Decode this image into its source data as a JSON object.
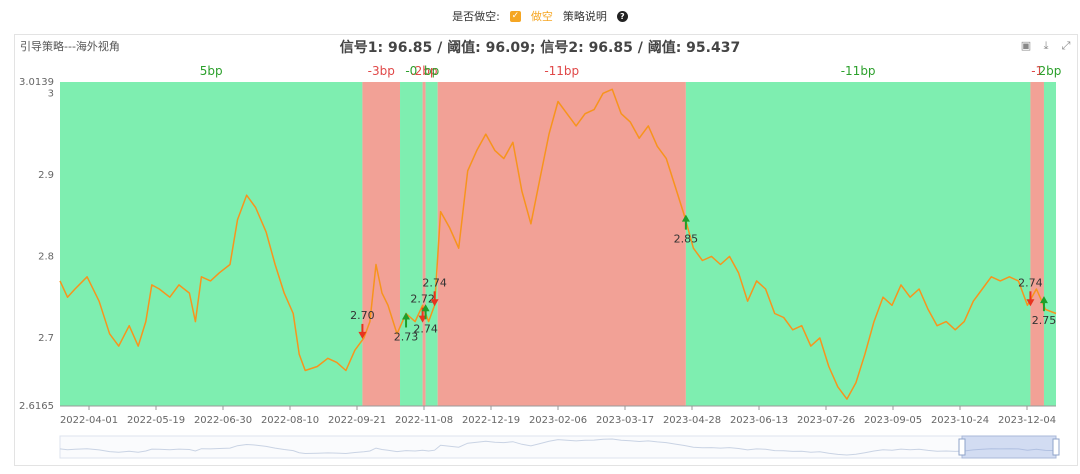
{
  "controls": {
    "short_question": "是否做空:",
    "short_checkbox_mark": "✓",
    "short_option": "做空",
    "strategy_help": "策略说明",
    "help_mark": "?"
  },
  "panel": {
    "strategy_name": "引导策略---海外视角",
    "signal_summary": "信号1: 96.85 / 阈值: 96.09; 信号2: 96.85 / 阈值: 95.437",
    "toolbox": [
      {
        "icon": "image-icon",
        "glyph": "▣"
      },
      {
        "icon": "download-icon",
        "glyph": "⤓"
      },
      {
        "icon": "fullscreen-icon",
        "glyph": "⤢"
      }
    ]
  },
  "colors": {
    "line": "#f7941d",
    "long_band": "#7eeeb0",
    "short_band": "#f2a196",
    "up_arrow": "#1e9e2a",
    "down_arrow": "#e8331e",
    "band_label_green": "#2ca02c",
    "band_label_red": "#e04848"
  },
  "chart_data": {
    "type": "line",
    "title": "",
    "xlabel": "",
    "ylabel": "",
    "ylim": [
      2.6165,
      3.0139
    ],
    "y_ticks": [
      2.6165,
      2.7,
      2.8,
      2.9,
      3,
      3.0139
    ],
    "x_range": [
      "2022-03-10",
      "2024-01-01"
    ],
    "x_tick_labels": [
      "2022-04-01",
      "2022-05-19",
      "2022-06-30",
      "2022-08-10",
      "2022-09-21",
      "2022-11-08",
      "2022-12-19",
      "2023-02-06",
      "2023-03-17",
      "2023-04-28",
      "2023-06-13",
      "2023-07-26",
      "2023-09-05",
      "2023-10-24",
      "2023-12-04"
    ],
    "series": [
      {
        "values": [
          [
            "2022-03-10",
            2.77
          ],
          [
            "2022-03-15",
            2.75
          ],
          [
            "2022-03-20",
            2.76
          ],
          [
            "2022-03-28",
            2.775
          ],
          [
            "2022-04-05",
            2.745
          ],
          [
            "2022-04-12",
            2.705
          ],
          [
            "2022-04-18",
            2.69
          ],
          [
            "2022-04-25",
            2.715
          ],
          [
            "2022-05-01",
            2.69
          ],
          [
            "2022-05-06",
            2.72
          ],
          [
            "2022-05-10",
            2.765
          ],
          [
            "2022-05-15",
            2.76
          ],
          [
            "2022-05-22",
            2.75
          ],
          [
            "2022-05-28",
            2.765
          ],
          [
            "2022-06-04",
            2.755
          ],
          [
            "2022-06-08",
            2.72
          ],
          [
            "2022-06-12",
            2.775
          ],
          [
            "2022-06-18",
            2.77
          ],
          [
            "2022-06-24",
            2.78
          ],
          [
            "2022-07-01",
            2.79
          ],
          [
            "2022-07-06",
            2.845
          ],
          [
            "2022-07-12",
            2.875
          ],
          [
            "2022-07-18",
            2.86
          ],
          [
            "2022-07-25",
            2.83
          ],
          [
            "2022-07-31",
            2.79
          ],
          [
            "2022-08-06",
            2.755
          ],
          [
            "2022-08-12",
            2.73
          ],
          [
            "2022-08-16",
            2.68
          ],
          [
            "2022-08-20",
            2.66
          ],
          [
            "2022-08-28",
            2.665
          ],
          [
            "2022-09-04",
            2.675
          ],
          [
            "2022-09-10",
            2.67
          ],
          [
            "2022-09-16",
            2.66
          ],
          [
            "2022-09-22",
            2.685
          ],
          [
            "2022-09-28",
            2.7
          ],
          [
            "2022-10-02",
            2.72
          ],
          [
            "2022-10-06",
            2.79
          ],
          [
            "2022-10-10",
            2.755
          ],
          [
            "2022-10-14",
            2.74
          ],
          [
            "2022-10-20",
            2.705
          ],
          [
            "2022-10-26",
            2.73
          ],
          [
            "2022-11-01",
            2.72
          ],
          [
            "2022-11-06",
            2.74
          ],
          [
            "2022-11-10",
            2.72
          ],
          [
            "2022-11-14",
            2.74
          ],
          [
            "2022-11-18",
            2.855
          ],
          [
            "2022-11-24",
            2.835
          ],
          [
            "2022-11-30",
            2.81
          ],
          [
            "2022-12-06",
            2.905
          ],
          [
            "2022-12-12",
            2.93
          ],
          [
            "2022-12-18",
            2.95
          ],
          [
            "2022-12-24",
            2.93
          ],
          [
            "2022-12-30",
            2.92
          ],
          [
            "2023-01-05",
            2.94
          ],
          [
            "2023-01-11",
            2.88
          ],
          [
            "2023-01-17",
            2.84
          ],
          [
            "2023-01-23",
            2.895
          ],
          [
            "2023-01-29",
            2.95
          ],
          [
            "2023-02-04",
            2.99
          ],
          [
            "2023-02-10",
            2.975
          ],
          [
            "2023-02-16",
            2.96
          ],
          [
            "2023-02-22",
            2.975
          ],
          [
            "2023-02-28",
            2.98
          ],
          [
            "2023-03-06",
            3.0
          ],
          [
            "2023-03-12",
            3.005
          ],
          [
            "2023-03-18",
            2.975
          ],
          [
            "2023-03-24",
            2.965
          ],
          [
            "2023-03-30",
            2.945
          ],
          [
            "2023-04-05",
            2.96
          ],
          [
            "2023-04-11",
            2.935
          ],
          [
            "2023-04-17",
            2.92
          ],
          [
            "2023-04-23",
            2.885
          ],
          [
            "2023-04-29",
            2.85
          ],
          [
            "2023-05-05",
            2.81
          ],
          [
            "2023-05-11",
            2.795
          ],
          [
            "2023-05-17",
            2.8
          ],
          [
            "2023-05-23",
            2.79
          ],
          [
            "2023-05-29",
            2.8
          ],
          [
            "2023-06-04",
            2.78
          ],
          [
            "2023-06-10",
            2.745
          ],
          [
            "2023-06-16",
            2.77
          ],
          [
            "2023-06-22",
            2.76
          ],
          [
            "2023-06-28",
            2.73
          ],
          [
            "2023-07-04",
            2.725
          ],
          [
            "2023-07-10",
            2.71
          ],
          [
            "2023-07-16",
            2.715
          ],
          [
            "2023-07-22",
            2.69
          ],
          [
            "2023-07-28",
            2.7
          ],
          [
            "2023-08-03",
            2.665
          ],
          [
            "2023-08-09",
            2.64
          ],
          [
            "2023-08-15",
            2.625
          ],
          [
            "2023-08-21",
            2.645
          ],
          [
            "2023-08-27",
            2.68
          ],
          [
            "2023-09-02",
            2.72
          ],
          [
            "2023-09-08",
            2.75
          ],
          [
            "2023-09-14",
            2.74
          ],
          [
            "2023-09-20",
            2.765
          ],
          [
            "2023-09-26",
            2.75
          ],
          [
            "2023-10-02",
            2.76
          ],
          [
            "2023-10-08",
            2.735
          ],
          [
            "2023-10-14",
            2.715
          ],
          [
            "2023-10-20",
            2.72
          ],
          [
            "2023-10-26",
            2.71
          ],
          [
            "2023-11-01",
            2.72
          ],
          [
            "2023-11-07",
            2.745
          ],
          [
            "2023-11-13",
            2.76
          ],
          [
            "2023-11-19",
            2.775
          ],
          [
            "2023-11-25",
            2.77
          ],
          [
            "2023-12-01",
            2.775
          ],
          [
            "2023-12-07",
            2.77
          ],
          [
            "2023-12-13",
            2.74
          ],
          [
            "2023-12-19",
            2.76
          ],
          [
            "2023-12-25",
            2.735
          ],
          [
            "2024-01-01",
            2.73
          ]
        ]
      }
    ],
    "bands": [
      {
        "start": "2022-03-10",
        "end": "2022-09-27",
        "side": "long",
        "label": "5bp"
      },
      {
        "start": "2022-09-27",
        "end": "2022-10-22",
        "side": "short",
        "label": "-3bp"
      },
      {
        "start": "2022-10-22",
        "end": "2022-11-06",
        "side": "long",
        "label": "-0"
      },
      {
        "start": "2022-11-06",
        "end": "2022-11-08",
        "side": "short",
        "label": ".2bp"
      },
      {
        "start": "2022-11-08",
        "end": "2022-11-16",
        "side": "long",
        "label": "bp"
      },
      {
        "start": "2022-11-16",
        "end": "2023-04-30",
        "side": "short",
        "label": "-11bp"
      },
      {
        "start": "2023-04-30",
        "end": "2023-12-15",
        "side": "long",
        "label": "-11bp"
      },
      {
        "start": "2023-12-15",
        "end": "2023-12-24",
        "side": "short",
        "label": "-1"
      },
      {
        "start": "2023-12-24",
        "end": "2024-01-01",
        "side": "long",
        "label": "2bp"
      }
    ],
    "signals": [
      {
        "date": "2022-09-27",
        "value": 2.7,
        "label": "2.70",
        "direction": "down"
      },
      {
        "date": "2022-10-26",
        "value": 2.73,
        "label": "2.73",
        "direction": "up"
      },
      {
        "date": "2022-11-06",
        "value": 2.72,
        "label": "2.72",
        "direction": "down"
      },
      {
        "date": "2022-11-08",
        "value": 2.74,
        "label": "2.74",
        "direction": "up"
      },
      {
        "date": "2022-11-14",
        "value": 2.74,
        "label": "2.74",
        "direction": "down"
      },
      {
        "date": "2023-04-30",
        "value": 2.85,
        "label": "2.85",
        "direction": "up"
      },
      {
        "date": "2023-12-15",
        "value": 2.74,
        "label": "2.74",
        "direction": "down"
      },
      {
        "date": "2023-12-24",
        "value": 2.75,
        "label": "2.75",
        "direction": "up"
      }
    ],
    "grid": false,
    "legend": "none"
  }
}
